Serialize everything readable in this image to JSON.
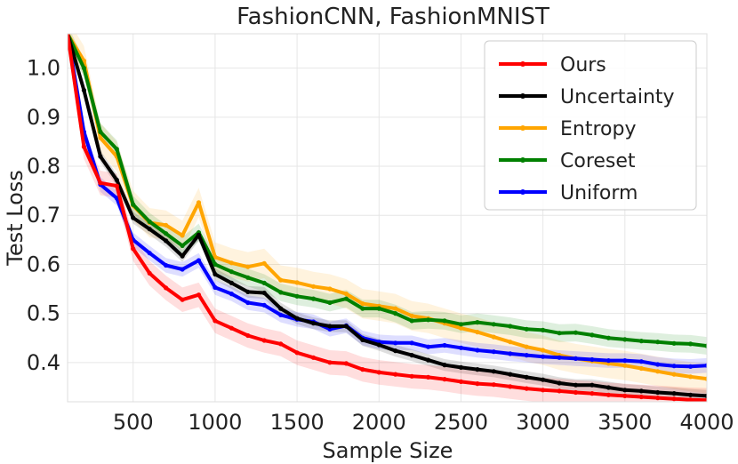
{
  "chart_data": {
    "type": "line",
    "title": "FashionCNN, FashionMNIST",
    "xlabel": "Sample Size",
    "ylabel": "Test Loss",
    "xlim": [
      100,
      4000
    ],
    "ylim": [
      0.32,
      1.07
    ],
    "xticks": [
      500,
      1000,
      1500,
      2000,
      2500,
      3000,
      3500,
      4000
    ],
    "xtick_labels": [
      "500",
      "1000",
      "1500",
      "2000",
      "2500",
      "3000",
      "3500",
      "4000"
    ],
    "yticks": [
      0.4,
      0.5,
      0.6,
      0.7,
      0.8,
      0.9,
      1.0
    ],
    "ytick_labels": [
      "0.4",
      "0.5",
      "0.6",
      "0.7",
      "0.8",
      "0.9",
      "1.0"
    ],
    "grid": true,
    "legend_position": "top-right",
    "x": [
      100,
      200,
      300,
      400,
      500,
      600,
      700,
      800,
      900,
      1000,
      1100,
      1200,
      1300,
      1400,
      1500,
      1600,
      1700,
      1800,
      1900,
      2000,
      2100,
      2200,
      2300,
      2400,
      2500,
      2600,
      2700,
      2800,
      2900,
      3000,
      3100,
      3200,
      3300,
      3400,
      3500,
      3600,
      3700,
      3800,
      3900,
      4000
    ],
    "series": [
      {
        "name": "Ours",
        "color": "#ff0000",
        "band": 0.025,
        "values": [
          1.07,
          0.84,
          0.766,
          0.76,
          0.632,
          0.582,
          0.552,
          0.528,
          0.538,
          0.485,
          0.47,
          0.455,
          0.445,
          0.438,
          0.42,
          0.41,
          0.4,
          0.398,
          0.386,
          0.38,
          0.376,
          0.372,
          0.37,
          0.366,
          0.361,
          0.357,
          0.355,
          0.351,
          0.347,
          0.344,
          0.342,
          0.339,
          0.337,
          0.334,
          0.332,
          0.33,
          0.328,
          0.326,
          0.324,
          0.323
        ]
      },
      {
        "name": "Uncertainty",
        "color": "#000000",
        "band": 0.012,
        "values": [
          1.07,
          0.955,
          0.82,
          0.772,
          0.695,
          0.672,
          0.648,
          0.617,
          0.66,
          0.58,
          0.562,
          0.544,
          0.542,
          0.51,
          0.49,
          0.48,
          0.474,
          0.474,
          0.446,
          0.436,
          0.424,
          0.415,
          0.405,
          0.395,
          0.39,
          0.386,
          0.382,
          0.376,
          0.37,
          0.365,
          0.358,
          0.354,
          0.354,
          0.349,
          0.344,
          0.342,
          0.339,
          0.337,
          0.334,
          0.332
        ]
      },
      {
        "name": "Entropy",
        "color": "#ffa500",
        "band": 0.03,
        "values": [
          1.07,
          1.015,
          0.858,
          0.82,
          0.72,
          0.685,
          0.68,
          0.659,
          0.726,
          0.615,
          0.603,
          0.595,
          0.602,
          0.568,
          0.563,
          0.555,
          0.55,
          0.54,
          0.52,
          0.515,
          0.51,
          0.495,
          0.49,
          0.48,
          0.47,
          0.462,
          0.452,
          0.442,
          0.432,
          0.425,
          0.415,
          0.408,
          0.403,
          0.398,
          0.394,
          0.388,
          0.382,
          0.376,
          0.371,
          0.367
        ]
      },
      {
        "name": "Coreset",
        "color": "#008000",
        "band": 0.018,
        "values": [
          1.07,
          1.0,
          0.87,
          0.835,
          0.722,
          0.687,
          0.663,
          0.638,
          0.665,
          0.6,
          0.585,
          0.573,
          0.562,
          0.543,
          0.535,
          0.53,
          0.522,
          0.53,
          0.51,
          0.51,
          0.5,
          0.485,
          0.487,
          0.485,
          0.478,
          0.482,
          0.478,
          0.474,
          0.468,
          0.466,
          0.46,
          0.461,
          0.456,
          0.45,
          0.447,
          0.444,
          0.442,
          0.439,
          0.438,
          0.434
        ]
      },
      {
        "name": "Uniform",
        "color": "#0000ff",
        "band": 0.015,
        "values": [
          1.07,
          0.87,
          0.763,
          0.735,
          0.65,
          0.623,
          0.598,
          0.59,
          0.608,
          0.553,
          0.54,
          0.522,
          0.517,
          0.497,
          0.488,
          0.483,
          0.468,
          0.475,
          0.45,
          0.442,
          0.44,
          0.44,
          0.432,
          0.435,
          0.43,
          0.425,
          0.422,
          0.418,
          0.415,
          0.412,
          0.41,
          0.408,
          0.406,
          0.404,
          0.404,
          0.402,
          0.396,
          0.393,
          0.392,
          0.394
        ]
      }
    ]
  }
}
